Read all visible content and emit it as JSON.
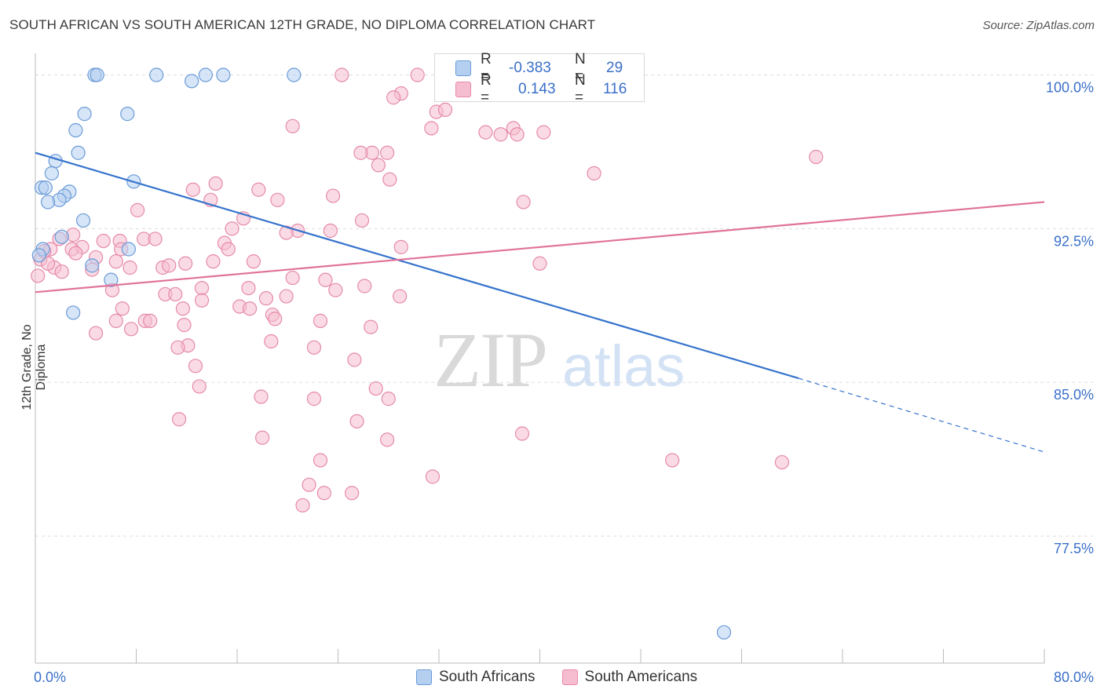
{
  "title": "SOUTH AFRICAN VS SOUTH AMERICAN 12TH GRADE, NO DIPLOMA CORRELATION CHART",
  "source": "Source: ZipAtlas.com",
  "watermark": {
    "zip": "ZIP",
    "atlas": "atlas"
  },
  "stats": {
    "r_label": "R =",
    "n_label": "N =",
    "rows": [
      {
        "r": "-0.383",
        "n": "29"
      },
      {
        "r": "0.143",
        "n": "116"
      }
    ]
  },
  "colors": {
    "blue_fill": "#b4cff0",
    "blue_stroke": "#6b9bd8",
    "blue_line": "#3573cc",
    "pink_fill": "#f6bdd0",
    "pink_stroke": "#e58aa9",
    "pink_line": "#e0729a",
    "tick_text": "#3a6fc8",
    "grid": "#dddddd"
  },
  "chart_data": {
    "type": "scatter",
    "xlabel": "",
    "ylabel": "12th Grade, No Diploma",
    "xlim": [
      0,
      80
    ],
    "ylim": [
      71.3,
      100.9
    ],
    "x_tick_labels": [
      "0.0%",
      "80.0%"
    ],
    "y_ticks": [
      {
        "value": 100.0,
        "label": "100.0%"
      },
      {
        "value": 92.5,
        "label": "92.5%"
      },
      {
        "value": 85.0,
        "label": "85.0%"
      },
      {
        "value": 77.5,
        "label": "77.5%"
      }
    ],
    "grid": true,
    "legend_position": "bottom",
    "series": [
      {
        "name": "South Africans",
        "points": [
          [
            4.7,
            100.0
          ],
          [
            4.9,
            100.0
          ],
          [
            9.6,
            100.0
          ],
          [
            13.5,
            100.0
          ],
          [
            14.9,
            100.0
          ],
          [
            20.5,
            100.0
          ],
          [
            12.4,
            99.7
          ],
          [
            3.9,
            98.1
          ],
          [
            7.3,
            98.1
          ],
          [
            3.2,
            97.3
          ],
          [
            3.4,
            96.2
          ],
          [
            1.6,
            95.8
          ],
          [
            1.3,
            95.2
          ],
          [
            7.8,
            94.8
          ],
          [
            0.5,
            94.5
          ],
          [
            0.8,
            94.5
          ],
          [
            2.7,
            94.3
          ],
          [
            2.3,
            94.1
          ],
          [
            1.9,
            93.9
          ],
          [
            1.0,
            93.8
          ],
          [
            3.8,
            92.9
          ],
          [
            2.1,
            92.1
          ],
          [
            0.6,
            91.5
          ],
          [
            7.4,
            91.5
          ],
          [
            4.5,
            90.7
          ],
          [
            6.0,
            90.0
          ],
          [
            3.0,
            88.4
          ],
          [
            54.6,
            72.8
          ],
          [
            0.3,
            91.2
          ]
        ],
        "trend": {
          "x": [
            0,
            60.5
          ],
          "y": [
            96.2,
            85.2
          ]
        },
        "trend_extension": {
          "x": [
            60.5,
            80
          ],
          "y": [
            85.2,
            81.6
          ]
        }
      },
      {
        "name": "South Americans",
        "points": [
          [
            24.3,
            100.0
          ],
          [
            30.3,
            100.0
          ],
          [
            33.2,
            100.0
          ],
          [
            29.0,
            99.1
          ],
          [
            28.4,
            98.9
          ],
          [
            31.8,
            98.2
          ],
          [
            32.5,
            98.3
          ],
          [
            20.4,
            97.5
          ],
          [
            31.4,
            97.4
          ],
          [
            37.9,
            97.4
          ],
          [
            35.7,
            97.2
          ],
          [
            36.9,
            97.1
          ],
          [
            40.3,
            97.2
          ],
          [
            26.7,
            96.2
          ],
          [
            38.2,
            97.1
          ],
          [
            25.8,
            96.2
          ],
          [
            27.9,
            96.2
          ],
          [
            27.2,
            95.6
          ],
          [
            61.9,
            96.0
          ],
          [
            44.3,
            95.2
          ],
          [
            28.1,
            94.9
          ],
          [
            14.3,
            94.7
          ],
          [
            12.5,
            94.4
          ],
          [
            17.7,
            94.4
          ],
          [
            38.7,
            93.8
          ],
          [
            23.6,
            94.1
          ],
          [
            19.2,
            93.9
          ],
          [
            13.9,
            93.9
          ],
          [
            8.1,
            93.4
          ],
          [
            16.5,
            93.0
          ],
          [
            25.9,
            92.9
          ],
          [
            15.6,
            92.5
          ],
          [
            20.8,
            92.4
          ],
          [
            23.4,
            92.4
          ],
          [
            19.9,
            92.3
          ],
          [
            3.0,
            92.2
          ],
          [
            1.9,
            92.0
          ],
          [
            8.6,
            92.0
          ],
          [
            9.5,
            92.0
          ],
          [
            5.4,
            91.9
          ],
          [
            6.7,
            91.9
          ],
          [
            15.0,
            91.8
          ],
          [
            3.7,
            91.6
          ],
          [
            2.9,
            91.5
          ],
          [
            6.8,
            91.5
          ],
          [
            1.2,
            91.5
          ],
          [
            29.0,
            91.6
          ],
          [
            15.3,
            91.5
          ],
          [
            3.2,
            91.3
          ],
          [
            4.8,
            91.1
          ],
          [
            6.4,
            90.9
          ],
          [
            11.9,
            90.8
          ],
          [
            17.3,
            90.9
          ],
          [
            14.1,
            90.9
          ],
          [
            10.1,
            90.6
          ],
          [
            10.6,
            90.7
          ],
          [
            40.0,
            90.8
          ],
          [
            1.5,
            90.6
          ],
          [
            7.5,
            90.6
          ],
          [
            4.5,
            90.5
          ],
          [
            2.1,
            90.4
          ],
          [
            20.4,
            90.1
          ],
          [
            23.0,
            90.0
          ],
          [
            13.2,
            89.6
          ],
          [
            16.9,
            89.6
          ],
          [
            23.8,
            89.5
          ],
          [
            26.1,
            89.7
          ],
          [
            6.1,
            89.5
          ],
          [
            10.3,
            89.3
          ],
          [
            11.1,
            89.3
          ],
          [
            19.9,
            89.2
          ],
          [
            18.3,
            89.1
          ],
          [
            28.9,
            89.2
          ],
          [
            13.2,
            89.0
          ],
          [
            16.2,
            88.7
          ],
          [
            17.0,
            88.6
          ],
          [
            6.9,
            88.6
          ],
          [
            11.7,
            88.6
          ],
          [
            18.8,
            88.3
          ],
          [
            19.0,
            88.1
          ],
          [
            6.4,
            88.0
          ],
          [
            8.7,
            88.0
          ],
          [
            9.1,
            88.0
          ],
          [
            22.6,
            88.0
          ],
          [
            11.8,
            87.8
          ],
          [
            7.6,
            87.6
          ],
          [
            26.6,
            87.7
          ],
          [
            4.8,
            87.4
          ],
          [
            18.7,
            87.0
          ],
          [
            12.1,
            86.8
          ],
          [
            11.3,
            86.7
          ],
          [
            22.1,
            86.7
          ],
          [
            25.3,
            86.1
          ],
          [
            12.7,
            85.8
          ],
          [
            13.0,
            84.8
          ],
          [
            27.0,
            84.7
          ],
          [
            28.0,
            84.2
          ],
          [
            17.9,
            84.3
          ],
          [
            22.1,
            84.2
          ],
          [
            11.4,
            83.2
          ],
          [
            25.5,
            83.1
          ],
          [
            38.6,
            82.5
          ],
          [
            18.0,
            82.3
          ],
          [
            27.9,
            82.2
          ],
          [
            22.6,
            81.2
          ],
          [
            50.5,
            81.2
          ],
          [
            59.2,
            81.1
          ],
          [
            31.5,
            80.4
          ],
          [
            21.7,
            80.0
          ],
          [
            22.9,
            79.6
          ],
          [
            25.1,
            79.6
          ],
          [
            21.2,
            79.0
          ],
          [
            0.2,
            90.2
          ],
          [
            0.4,
            91.0
          ],
          [
            0.7,
            91.4
          ],
          [
            1.0,
            90.8
          ]
        ],
        "trend": {
          "x": [
            0,
            80
          ],
          "y": [
            89.4,
            93.8
          ]
        }
      }
    ]
  }
}
